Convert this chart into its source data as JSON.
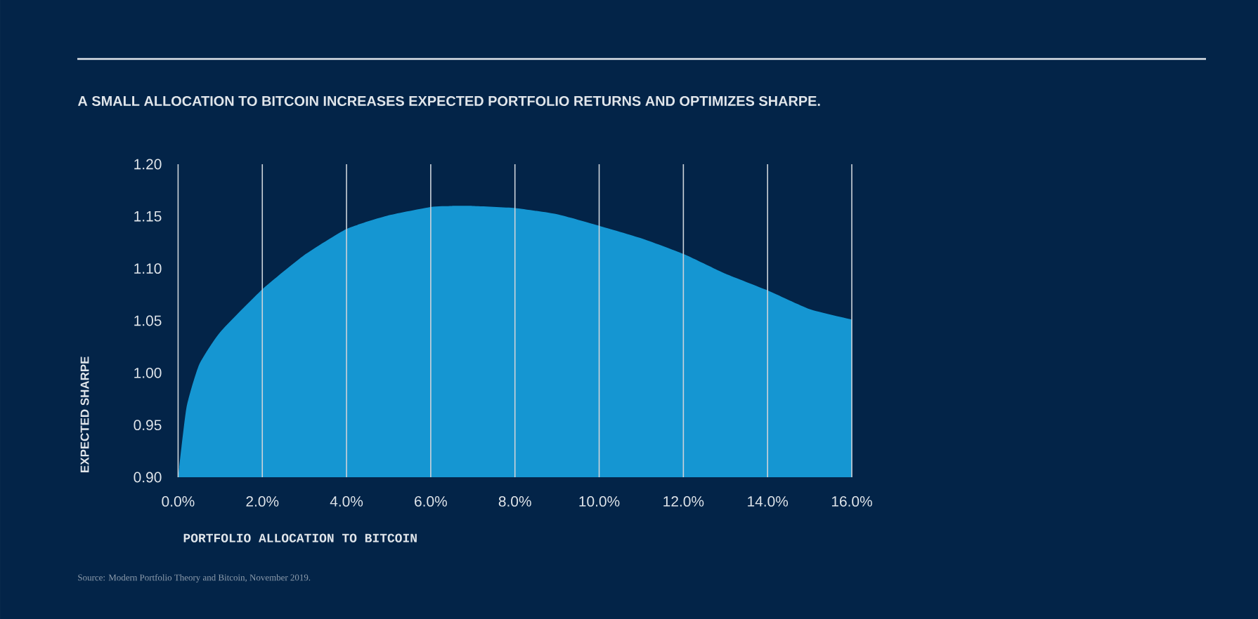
{
  "chart_data": {
    "type": "area",
    "title": "A SMALL ALLOCATION TO BITCOIN INCREASES EXPECTED PORTFOLIO RETURNS AND OPTIMIZES SHARPE.",
    "xlabel": "PORTFOLIO ALLOCATION TO BITCOIN",
    "ylabel": "EXPECTED SHARPE",
    "x": [
      0,
      0.2,
      0.5,
      1,
      2,
      3,
      4,
      5,
      6,
      6.5,
      7,
      8,
      9,
      10,
      11,
      12,
      13,
      14,
      15,
      16
    ],
    "series": [
      {
        "color": "#1596d2",
        "values": [
          0.9,
          0.967,
          1.008,
          1.039,
          1.08,
          1.113,
          1.138,
          1.151,
          1.159,
          1.16,
          1.16,
          1.158,
          1.152,
          1.141,
          1.129,
          1.114,
          1.095,
          1.079,
          1.061,
          1.051
        ]
      }
    ],
    "xlim": [
      0,
      16
    ],
    "ylim": [
      0.9,
      1.2
    ],
    "xticks": [
      {
        "value": 0,
        "label": "0.0%"
      },
      {
        "value": 2,
        "label": "2.0%"
      },
      {
        "value": 4,
        "label": "4.0%"
      },
      {
        "value": 6,
        "label": "6.0%"
      },
      {
        "value": 8,
        "label": "8.0%"
      },
      {
        "value": 10,
        "label": "10.0%"
      },
      {
        "value": 12,
        "label": "12.0%"
      },
      {
        "value": 14,
        "label": "14.0%"
      },
      {
        "value": 16,
        "label": "16.0%"
      }
    ],
    "yticks": [
      {
        "value": 0.9,
        "label": "0.90"
      },
      {
        "value": 0.95,
        "label": "0.95"
      },
      {
        "value": 1.0,
        "label": "1.00"
      },
      {
        "value": 1.05,
        "label": "1.05"
      },
      {
        "value": 1.1,
        "label": "1.10"
      },
      {
        "value": 1.15,
        "label": "1.15"
      },
      {
        "value": 1.2,
        "label": "1.20"
      }
    ],
    "grid": "x",
    "annotations": [
      "Source: Modern Portfolio Theory and Bitcoin, November 2019."
    ]
  }
}
